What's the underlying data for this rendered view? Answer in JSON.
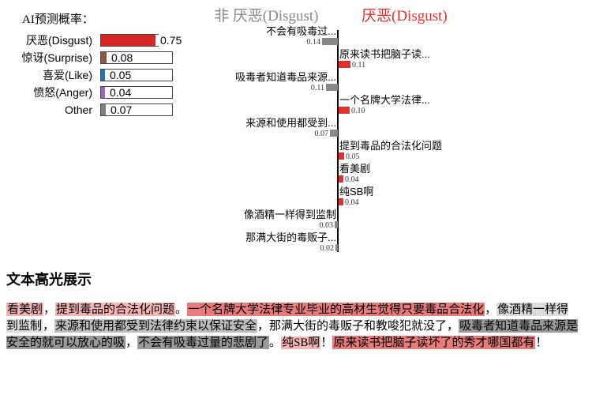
{
  "probability_panel": {
    "title": "AI预测概率：",
    "rows": [
      {
        "label": "厌恶(Disgust)",
        "value_text": "0.75",
        "value": 0.75,
        "color": "#d62728"
      },
      {
        "label": "惊讶(Surprise)",
        "value_text": "0.08",
        "value": 0.08,
        "color": "#8c564b"
      },
      {
        "label": "喜爱(Like)",
        "value_text": "0.05",
        "value": 0.05,
        "color": "#1f77b4"
      },
      {
        "label": "愤怒(Anger)",
        "value_text": "0.04",
        "value": 0.04,
        "color": "#9467bd"
      },
      {
        "label": "Other",
        "value_text": "0.07",
        "value": 0.07,
        "color": "#7f7f7f"
      }
    ]
  },
  "contribution_panel": {
    "header_non": "非 厌恶(Disgust)",
    "header_yes": "厌恶(Disgust)",
    "color_non": "#888888",
    "color_yes": "#e03131",
    "items": [
      {
        "text": "不会有吸毒过...",
        "side": "non",
        "value": 0.14,
        "value_text": "0.14"
      },
      {
        "text": "原来读书把脑子读...",
        "side": "yes",
        "value": 0.11,
        "value_text": "0.11"
      },
      {
        "text": "吸毒者知道毒品来源...",
        "side": "non",
        "value": 0.11,
        "value_text": "0.11"
      },
      {
        "text": "一个名牌大学法律...",
        "side": "yes",
        "value": 0.1,
        "value_text": "0.10"
      },
      {
        "text": "来源和使用都受到...",
        "side": "non",
        "value": 0.07,
        "value_text": "0.07"
      },
      {
        "text": "提到毒品的合法化问题",
        "side": "yes",
        "value": 0.05,
        "value_text": "0.05"
      },
      {
        "text": "看美剧",
        "side": "yes",
        "value": 0.04,
        "value_text": "0.04"
      },
      {
        "text": "纯SB啊",
        "side": "yes",
        "value": 0.04,
        "value_text": "0.04"
      },
      {
        "text": "像酒精一样得到监制",
        "side": "non",
        "value": 0.03,
        "value_text": "0.03"
      },
      {
        "text": "那满大街的毒贩子...",
        "side": "non",
        "value": 0.02,
        "value_text": "0.02"
      }
    ]
  },
  "highlight_section": {
    "title": "文本高光展示",
    "segments": [
      {
        "text": "看美剧",
        "hl": "yes_light"
      },
      {
        "text": "，",
        "hl": "none"
      },
      {
        "text": "提到毒品的合法化问题",
        "hl": "yes_light"
      },
      {
        "text": "。",
        "hl": "none"
      },
      {
        "text": "一个名牌大学法律专业毕业的高材生觉得只要毒品合法化",
        "hl": "yes_mid"
      },
      {
        "text": "，",
        "hl": "none"
      },
      {
        "text": "像酒精一样得到监制",
        "hl": "non_light"
      },
      {
        "text": "，",
        "hl": "none"
      },
      {
        "text": "来源和使用都受到法律约束以保证安全",
        "hl": "non_mid"
      },
      {
        "text": "，那满大街的毒贩子和教唆犯就没了，",
        "hl": "none"
      },
      {
        "text": "吸毒者知道毒品来源是安全的就可以放心的吸",
        "hl": "non_dark"
      },
      {
        "text": "，",
        "hl": "none"
      },
      {
        "text": "不会有吸毒过量的悲剧了",
        "hl": "non_dark"
      },
      {
        "text": "。",
        "hl": "none"
      },
      {
        "text": "纯SB啊",
        "hl": "yes_light",
        "ascii": true
      },
      {
        "text": "！",
        "hl": "none"
      },
      {
        "text": "原来读书把脑子读坏了的秀才哪国都有",
        "hl": "yes_mid"
      },
      {
        "text": "！",
        "hl": "none"
      }
    ],
    "highlight_colors": {
      "yes_light": "#f5b5b5",
      "yes_mid": "#e87b7b",
      "non_light": "#dcdcdc",
      "non_mid": "#bdbdbd",
      "non_dark": "#9a9a9a",
      "none": "transparent"
    }
  }
}
